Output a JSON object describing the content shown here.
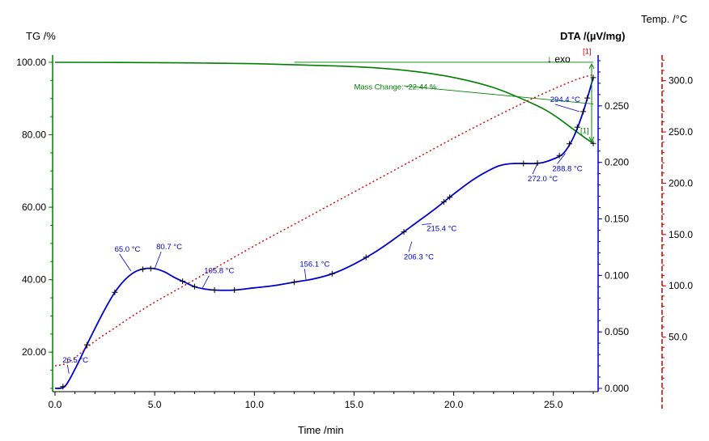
{
  "header": {
    "tg_label": "TG /%",
    "dta_label": "DTA /(µV/mg)",
    "temp_label": "Temp. /°C",
    "exo_label": "↓ exo"
  },
  "colors": {
    "tg": "#008000",
    "dta": "#0000cc",
    "temp": "#cc0000",
    "axis_text": "#000000"
  },
  "chart_data": {
    "type": "line",
    "xlabel": "Time /min",
    "x_ticks": [
      "0.0",
      "5.0",
      "10.0",
      "15.0",
      "20.0",
      "25.0"
    ],
    "xlim": [
      0,
      27
    ],
    "axes": {
      "tg": {
        "label": "TG /%",
        "ylim": [
          10,
          102
        ],
        "ticks": [
          "20.00",
          "40.00",
          "60.00",
          "80.00",
          "100.00"
        ]
      },
      "dta": {
        "label": "DTA /(µV/mg)",
        "ylim": [
          0,
          0.295
        ],
        "ticks": [
          "0.000",
          "0.050",
          "0.100",
          "0.150",
          "0.200",
          "0.250"
        ]
      },
      "temp": {
        "label": "Temp. /°C",
        "ylim": [
          0,
          325
        ],
        "ticks": [
          "50.0",
          "100.0",
          "150.0",
          "200.0",
          "250.0",
          "300.0"
        ]
      }
    },
    "series": [
      {
        "axis": "tg",
        "x": [
          0,
          5,
          10,
          14,
          16,
          18,
          20,
          22,
          24,
          25,
          26,
          26.5,
          27
        ],
        "y": [
          100,
          99.9,
          99.6,
          99.0,
          98.5,
          97.5,
          95.8,
          93.0,
          88.5,
          85.5,
          81.5,
          79.5,
          77.6
        ]
      },
      {
        "axis": "dta",
        "x": [
          0,
          0.5,
          1,
          1.5,
          2,
          2.5,
          3,
          3.5,
          4,
          4.5,
          5,
          5.5,
          6,
          6.5,
          7,
          7.5,
          8,
          9,
          10,
          11,
          12,
          13,
          14,
          15,
          16,
          17,
          18,
          19,
          20,
          21,
          22,
          22.5,
          23,
          24,
          24.5,
          25,
          25.5,
          26,
          26.5,
          27
        ],
        "y": [
          0,
          0.002,
          0.017,
          0.035,
          0.053,
          0.07,
          0.085,
          0.096,
          0.103,
          0.106,
          0.106,
          0.103,
          0.098,
          0.094,
          0.09,
          0.088,
          0.087,
          0.087,
          0.089,
          0.091,
          0.094,
          0.097,
          0.102,
          0.11,
          0.12,
          0.132,
          0.145,
          0.158,
          0.172,
          0.185,
          0.195,
          0.198,
          0.199,
          0.199,
          0.2,
          0.203,
          0.208,
          0.222,
          0.245,
          0.275
        ]
      },
      {
        "axis": "temp",
        "x": [
          0,
          0.5,
          1,
          1.5,
          2,
          3,
          4,
          5,
          6,
          8,
          10,
          12,
          14,
          16,
          18,
          20,
          22,
          24,
          26,
          27
        ],
        "y": [
          22,
          24,
          30,
          38,
          46,
          59,
          72,
          84,
          95,
          117,
          139,
          160,
          181,
          202,
          223,
          244,
          264,
          283,
          300,
          306
        ]
      }
    ],
    "markers": {
      "dta_x": [
        0.4,
        1.6,
        3.0,
        4.4,
        4.8,
        6.4,
        7.0,
        8.0,
        9.0,
        12.0,
        13.9,
        15.6,
        17.5,
        19.5,
        19.8,
        23.5,
        24.2,
        25.3,
        25.8,
        26.2,
        26.5,
        26.7,
        27.0
      ],
      "tg_end_x": 27.0
    },
    "annotations": [
      {
        "text": "26.5 °C",
        "x": 0.7,
        "y": 0.013
      },
      {
        "text": "65.0 °C",
        "x": 3.8,
        "y": 0.104
      },
      {
        "text": "80.7 °C",
        "x": 5.0,
        "y": 0.106
      },
      {
        "text": "105.8 °C",
        "x": 7.4,
        "y": 0.089
      },
      {
        "text": "156.1 °C",
        "x": 12.6,
        "y": 0.095
      },
      {
        "text": "206.3 °C",
        "x": 17.9,
        "y": 0.13
      },
      {
        "text": "215.4 °C",
        "x": 18.4,
        "y": 0.145
      },
      {
        "text": "272.0 °C",
        "x": 24.2,
        "y": 0.199
      },
      {
        "text": "288.8 °C",
        "x": 25.6,
        "y": 0.208
      },
      {
        "text": "294.4 °C",
        "x": 26.3,
        "y": 0.245
      }
    ],
    "mass_change": {
      "label": "Mass Change: -22.44 %",
      "value": -22.44
    },
    "step_markers": [
      "[1]",
      "[1]"
    ]
  }
}
